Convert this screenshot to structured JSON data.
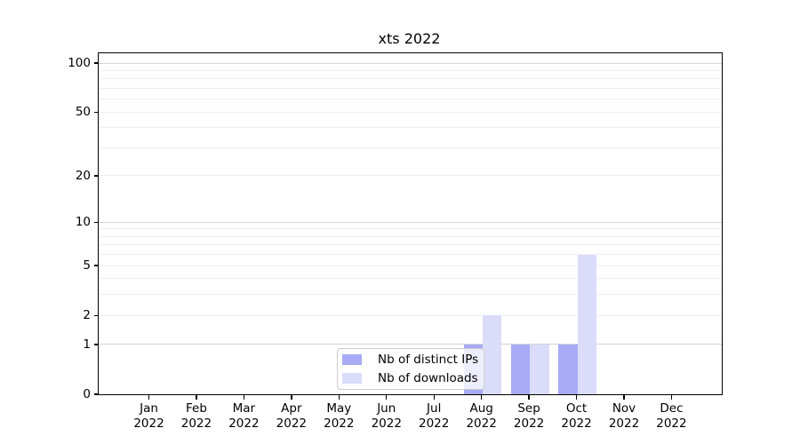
{
  "chart_data": {
    "type": "bar",
    "title": "xts 2022",
    "categories": [
      "Jan",
      "Feb",
      "Mar",
      "Apr",
      "May",
      "Jun",
      "Jul",
      "Aug",
      "Sep",
      "Oct",
      "Nov",
      "Dec"
    ],
    "x_year": "2022",
    "series": [
      {
        "name": "Nb of distinct IPs",
        "color": "#a7abf5",
        "values": [
          0,
          0,
          0,
          0,
          0,
          0,
          0,
          1,
          1,
          1,
          0,
          0
        ]
      },
      {
        "name": "Nb of downloads",
        "color": "#dadcfa",
        "values": [
          0,
          0,
          0,
          0,
          0,
          0,
          0,
          2,
          1,
          6,
          0,
          0
        ]
      }
    ],
    "y_axis": {
      "scale": "log1p",
      "ticks": [
        0,
        1,
        2,
        5,
        10,
        20,
        50,
        100
      ],
      "ylim": [
        0,
        115
      ],
      "ylabel": "",
      "xlabel": ""
    },
    "gridlines": {
      "on": true,
      "major_values": [
        1,
        10,
        100
      ],
      "minor_values": [
        2,
        3,
        4,
        5,
        6,
        7,
        8,
        9,
        20,
        30,
        40,
        50,
        60,
        70,
        80,
        90
      ],
      "major_color": "#d4d4d4",
      "minor_color": "#efefef"
    },
    "legend": {
      "position": "lower center"
    },
    "colors": {
      "axis": "#000000",
      "text": "#000000",
      "background": "#ffffff"
    }
  }
}
